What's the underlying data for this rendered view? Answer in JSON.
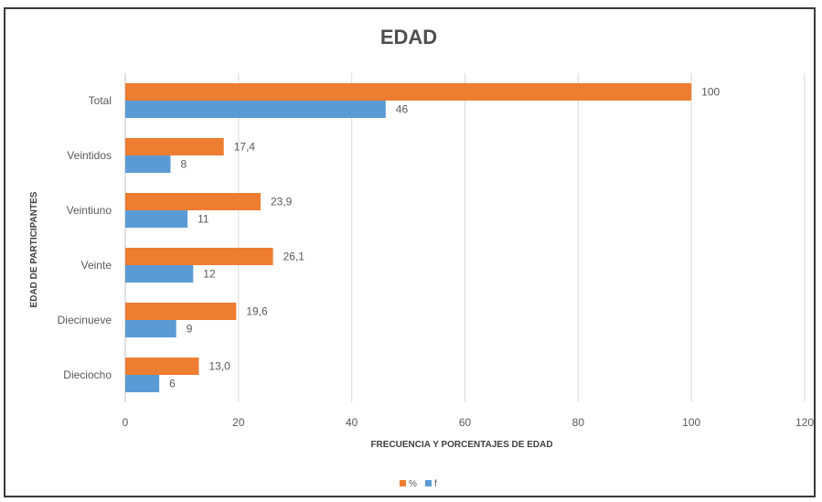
{
  "chart_data": {
    "type": "bar",
    "orientation": "horizontal",
    "title": "EDAD",
    "xlabel": "FRECUENCIA Y PORCENTAJES DE EDAD",
    "ylabel": "EDAD DE PARTICIPANTES",
    "categories": [
      "Total",
      "Veintidos",
      "Veintiuno",
      "Veinte",
      "Diecinueve",
      "Dieciocho"
    ],
    "series": [
      {
        "name": "%",
        "color": "#ed7d31",
        "values": [
          100,
          17.4,
          23.9,
          26.1,
          19.6,
          13.0
        ],
        "labels": [
          "100",
          "17,4",
          "23,9",
          "26,1",
          "19,6",
          "13,0"
        ]
      },
      {
        "name": "f",
        "color": "#5b9bd5",
        "values": [
          46,
          8,
          11,
          12,
          9,
          6
        ],
        "labels": [
          "46",
          "8",
          "11",
          "12",
          "9",
          "6"
        ]
      }
    ],
    "xlim": [
      0,
      120
    ],
    "xticks": [
      "0",
      "20",
      "40",
      "60",
      "80",
      "100",
      "120"
    ],
    "grid": "vertical",
    "legend": "bottom-center"
  }
}
